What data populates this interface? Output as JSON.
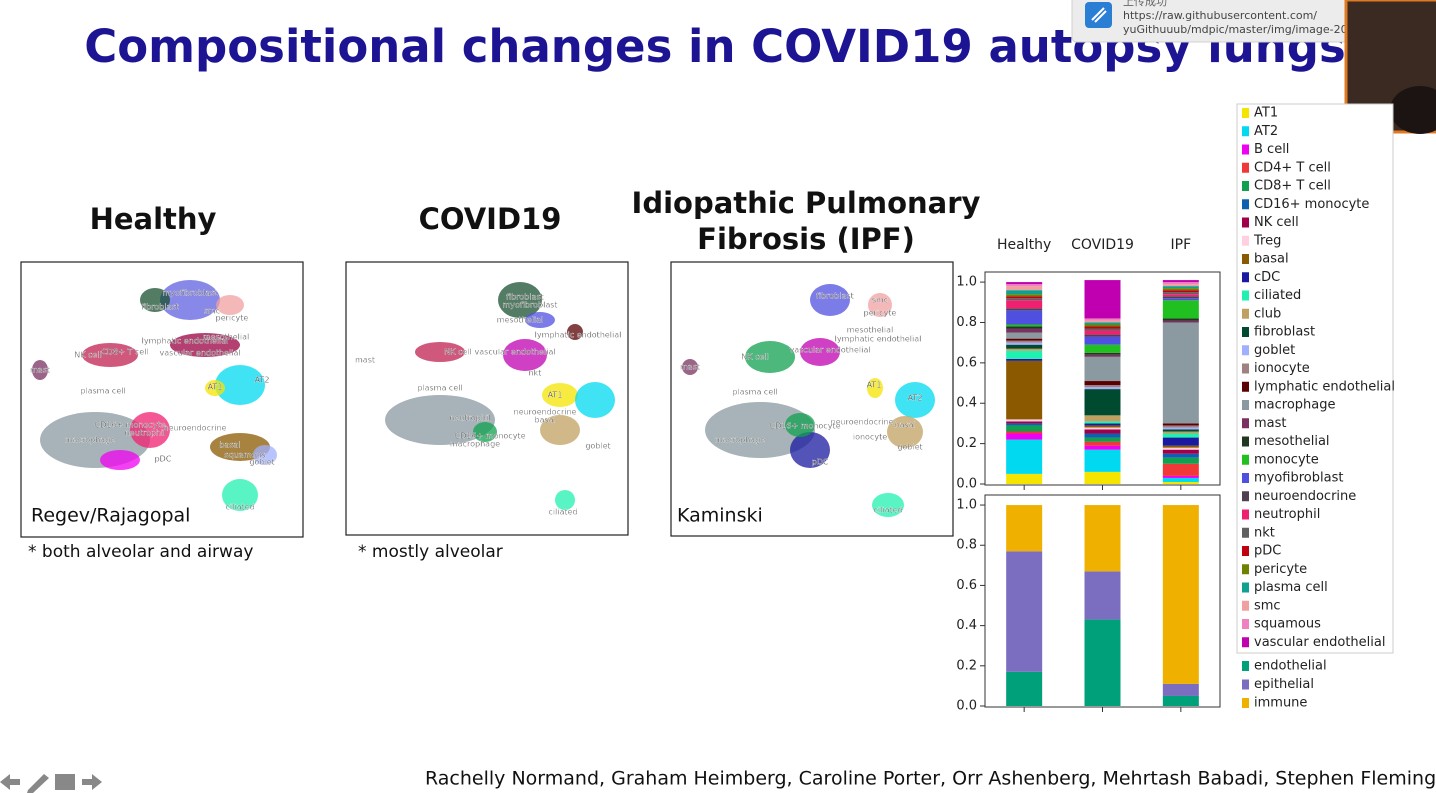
{
  "slide": {
    "title": "Compositional changes in COVID19 autopsy lungs",
    "panels": [
      {
        "title_lines": [
          "Healthy"
        ],
        "source": "Regev/Rajagopal",
        "note": "* both alveolar and airway",
        "labels": [
          "myofibroblast",
          "fibroblast",
          "smc",
          "pericyte",
          "mesothelial",
          "lymphatic endothelial",
          "vascular endothelial",
          "NK cell",
          "CD8+ T cell",
          "mast",
          "plasma cell",
          "AT1",
          "AT2",
          "CD16+ monocyte",
          "neuroendocrine",
          "macrophage",
          "neutrophil",
          "basal",
          "squamous",
          "pDC",
          "goblet",
          "ciliated"
        ]
      },
      {
        "title_lines": [
          "COVID19"
        ],
        "note": "* mostly alveolar",
        "labels": [
          "fibroblast",
          "myofibroblast",
          "mesothelial",
          "lymphatic endothelial",
          "vascular endothelial",
          "NK cell",
          "mast",
          "nkt",
          "plasma cell",
          "AT1",
          "neuroendocrine",
          "basal",
          "neutrophil",
          "CD16+ monocyte",
          "macrophage",
          "goblet",
          "ciliated"
        ]
      },
      {
        "title_lines": [
          "Idiopathic Pulmonary",
          "Fibrosis (IPF)"
        ],
        "source": "Kaminski",
        "labels": [
          "fibroblast",
          "smc",
          "pericyte",
          "mesothelial",
          "lymphatic endothelial",
          "vascular endothelial",
          "NK cell",
          "mast",
          "plasma cell",
          "AT1",
          "AT2",
          "neuroendocrine",
          "CD16+ monocyte",
          "macrophage",
          "ionocyte",
          "basal",
          "goblet",
          "pDC",
          "ciliated"
        ]
      }
    ],
    "authors": "Rachelly Normand, Graham Heimberg, Caroline Porter, Orr Ashenberg, Mehrtash Babadi, Stephen Fleming"
  },
  "notification": {
    "title": "上传成功",
    "lines": [
      "https://raw.githubusercontent.com/",
      "yuGithuuub/mdpic/master/img/image-20..."
    ]
  },
  "chart_data": [
    {
      "type": "stacked-bar",
      "categories": [
        "Healthy",
        "COVID19",
        "IPF"
      ],
      "ylim": [
        0,
        1.05
      ],
      "yticks": [
        {
          "value": 0,
          "label": "0.0"
        },
        0.2,
        0.4,
        0.6,
        0.8,
        {
          "value": 1,
          "label": "1.0"
        }
      ],
      "series": [
        {
          "name": "AT1",
          "color": "#f5e400",
          "values": [
            0.05,
            0.06,
            0.01
          ]
        },
        {
          "name": "AT2",
          "color": "#00d9f0",
          "values": [
            0.17,
            0.11,
            0.02
          ]
        },
        {
          "name": "B cell",
          "color": "#f000f0",
          "values": [
            0.03,
            0.02,
            0.01
          ]
        },
        {
          "name": "CD4+ T cell",
          "color": "#f03838",
          "values": [
            0.01,
            0.02,
            0.06
          ]
        },
        {
          "name": "CD8+ T cell",
          "color": "#10a050",
          "values": [
            0.03,
            0.02,
            0.03
          ]
        },
        {
          "name": "CD16+ monocyte",
          "color": "#1060b0",
          "values": [
            0.01,
            0.02,
            0.02
          ]
        },
        {
          "name": "NK cell",
          "color": "#a0004a",
          "values": [
            0.01,
            0.02,
            0.02
          ]
        },
        {
          "name": "Treg",
          "color": "#ffd0e0",
          "values": [
            0.01,
            0.01,
            0.01
          ]
        },
        {
          "name": "basal",
          "color": "#8b5a00",
          "values": [
            0.29,
            0.01,
            0.01
          ]
        },
        {
          "name": "cDC",
          "color": "#1a1aa0",
          "values": [
            0.01,
            0.01,
            0.04
          ]
        },
        {
          "name": "ciliated",
          "color": "#20f0b0",
          "values": [
            0.04,
            0.01,
            0.02
          ]
        },
        {
          "name": "club",
          "color": "#c0a060",
          "values": [
            0.01,
            0.03,
            0.01
          ]
        },
        {
          "name": "fibroblast",
          "color": "#004a30",
          "values": [
            0.02,
            0.13,
            0.01
          ]
        },
        {
          "name": "goblet",
          "color": "#a0b0ff",
          "values": [
            0.01,
            0.01,
            0.01
          ]
        },
        {
          "name": "ionocyte",
          "color": "#a08080",
          "values": [
            0.01,
            0.01,
            0.01
          ]
        },
        {
          "name": "lymphatic endothelial",
          "color": "#5a0000",
          "values": [
            0.01,
            0.02,
            0.01
          ]
        },
        {
          "name": "macrophage",
          "color": "#8a9aa0",
          "values": [
            0.03,
            0.12,
            0.5
          ]
        },
        {
          "name": "mast",
          "color": "#7a3060",
          "values": [
            0.02,
            0.01,
            0.01
          ]
        },
        {
          "name": "mesothelial",
          "color": "#203820",
          "values": [
            0.01,
            0.01,
            0.01
          ]
        },
        {
          "name": "monocyte",
          "color": "#20c020",
          "values": [
            0.01,
            0.04,
            0.09
          ]
        },
        {
          "name": "myofibroblast",
          "color": "#5050e0",
          "values": [
            0.07,
            0.04,
            0.01
          ]
        },
        {
          "name": "neuroendocrine",
          "color": "#504050",
          "values": [
            0.01,
            0.01,
            0.01
          ]
        },
        {
          "name": "neutrophil",
          "color": "#f02070",
          "values": [
            0.04,
            0.02,
            0.01
          ]
        },
        {
          "name": "nkt",
          "color": "#606060",
          "values": [
            0.01,
            0.01,
            0.01
          ]
        },
        {
          "name": "pDC",
          "color": "#c00010",
          "values": [
            0.01,
            0.01,
            0.01
          ]
        },
        {
          "name": "pericyte",
          "color": "#708000",
          "values": [
            0.01,
            0.01,
            0.01
          ]
        },
        {
          "name": "plasma cell",
          "color": "#10a090",
          "values": [
            0.02,
            0.01,
            0.01
          ]
        },
        {
          "name": "smc",
          "color": "#f0a0a0",
          "values": [
            0.02,
            0.01,
            0.01
          ]
        },
        {
          "name": "squamous",
          "color": "#f080c0",
          "values": [
            0.01,
            0.01,
            0.01
          ]
        },
        {
          "name": "vascular endothelial",
          "color": "#c000b0",
          "values": [
            0.01,
            0.19,
            0.01
          ]
        }
      ]
    },
    {
      "type": "stacked-bar",
      "categories": [
        null,
        null,
        null
      ],
      "ylim": [
        0,
        1.05
      ],
      "yticks": [
        {
          "value": 0,
          "label": "0.0"
        },
        0.2,
        0.4,
        0.6,
        0.8,
        {
          "value": 1,
          "label": "1.0"
        }
      ],
      "series": [
        {
          "name": "endothelial",
          "color": "#00a07a",
          "values": [
            0.17,
            0.43,
            0.05
          ]
        },
        {
          "name": "epithelial",
          "color": "#7b6ec0",
          "values": [
            0.6,
            0.24,
            0.06
          ]
        },
        {
          "name": "immune",
          "color": "#f0b000",
          "values": [
            0.23,
            0.33,
            0.89
          ]
        }
      ]
    }
  ]
}
